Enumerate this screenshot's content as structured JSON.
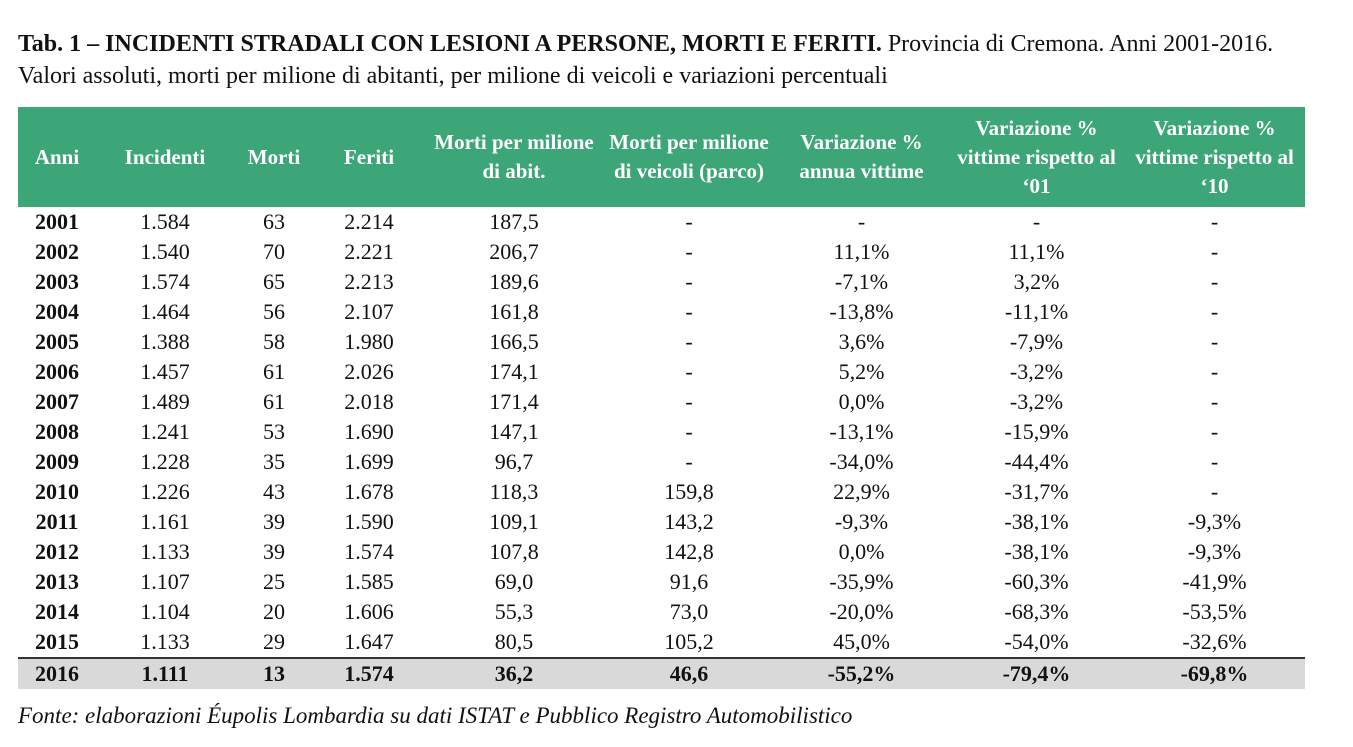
{
  "title": {
    "bold": "Tab. 1 – INCIDENTI STRADALI CON LESIONI A PERSONE, MORTI E FERITI.",
    "rest": "Provincia di Cremona. Anni 2001-2016. Valori assoluti, morti per milione di abitanti, per milione di veicoli e variazioni percentuali"
  },
  "table": {
    "headers": [
      "Anni",
      "Incidenti",
      "Morti",
      "Feriti",
      "Morti per milione di abit.",
      "Morti per milione di veicoli (parco)",
      "Variazione % annua vittime",
      "Variazione % vittime rispetto al ‘01",
      "Variazione % vittime rispetto al ‘10"
    ],
    "rows": [
      [
        "2001",
        "1.584",
        "63",
        "2.214",
        "187,5",
        "-",
        "-",
        "-",
        "-"
      ],
      [
        "2002",
        "1.540",
        "70",
        "2.221",
        "206,7",
        "-",
        "11,1%",
        "11,1%",
        "-"
      ],
      [
        "2003",
        "1.574",
        "65",
        "2.213",
        "189,6",
        "-",
        "-7,1%",
        "3,2%",
        "-"
      ],
      [
        "2004",
        "1.464",
        "56",
        "2.107",
        "161,8",
        "-",
        "-13,8%",
        "-11,1%",
        "-"
      ],
      [
        "2005",
        "1.388",
        "58",
        "1.980",
        "166,5",
        "-",
        "3,6%",
        "-7,9%",
        "-"
      ],
      [
        "2006",
        "1.457",
        "61",
        "2.026",
        "174,1",
        "-",
        "5,2%",
        "-3,2%",
        "-"
      ],
      [
        "2007",
        "1.489",
        "61",
        "2.018",
        "171,4",
        "-",
        "0,0%",
        "-3,2%",
        "-"
      ],
      [
        "2008",
        "1.241",
        "53",
        "1.690",
        "147,1",
        "-",
        "-13,1%",
        "-15,9%",
        "-"
      ],
      [
        "2009",
        "1.228",
        "35",
        "1.699",
        "96,7",
        "-",
        "-34,0%",
        "-44,4%",
        "-"
      ],
      [
        "2010",
        "1.226",
        "43",
        "1.678",
        "118,3",
        "159,8",
        "22,9%",
        "-31,7%",
        "-"
      ],
      [
        "2011",
        "1.161",
        "39",
        "1.590",
        "109,1",
        "143,2",
        "-9,3%",
        "-38,1%",
        "-9,3%"
      ],
      [
        "2012",
        "1.133",
        "39",
        "1.574",
        "107,8",
        "142,8",
        "0,0%",
        "-38,1%",
        "-9,3%"
      ],
      [
        "2013",
        "1.107",
        "25",
        "1.585",
        "69,0",
        "91,6",
        "-35,9%",
        "-60,3%",
        "-41,9%"
      ],
      [
        "2014",
        "1.104",
        "20",
        "1.606",
        "55,3",
        "73,0",
        "-20,0%",
        "-68,3%",
        "-53,5%"
      ],
      [
        "2015",
        "1.133",
        "29",
        "1.647",
        "80,5",
        "105,2",
        "45,0%",
        "-54,0%",
        "-32,6%"
      ],
      [
        "2016",
        "1.111",
        "13",
        "1.574",
        "36,2",
        "46,6",
        "-55,2%",
        "-79,4%",
        "-69,8%"
      ]
    ]
  },
  "footer": "Fonte: elaborazioni Éupolis Lombardia su dati ISTAT e Pubblico Registro Automobilistico"
}
